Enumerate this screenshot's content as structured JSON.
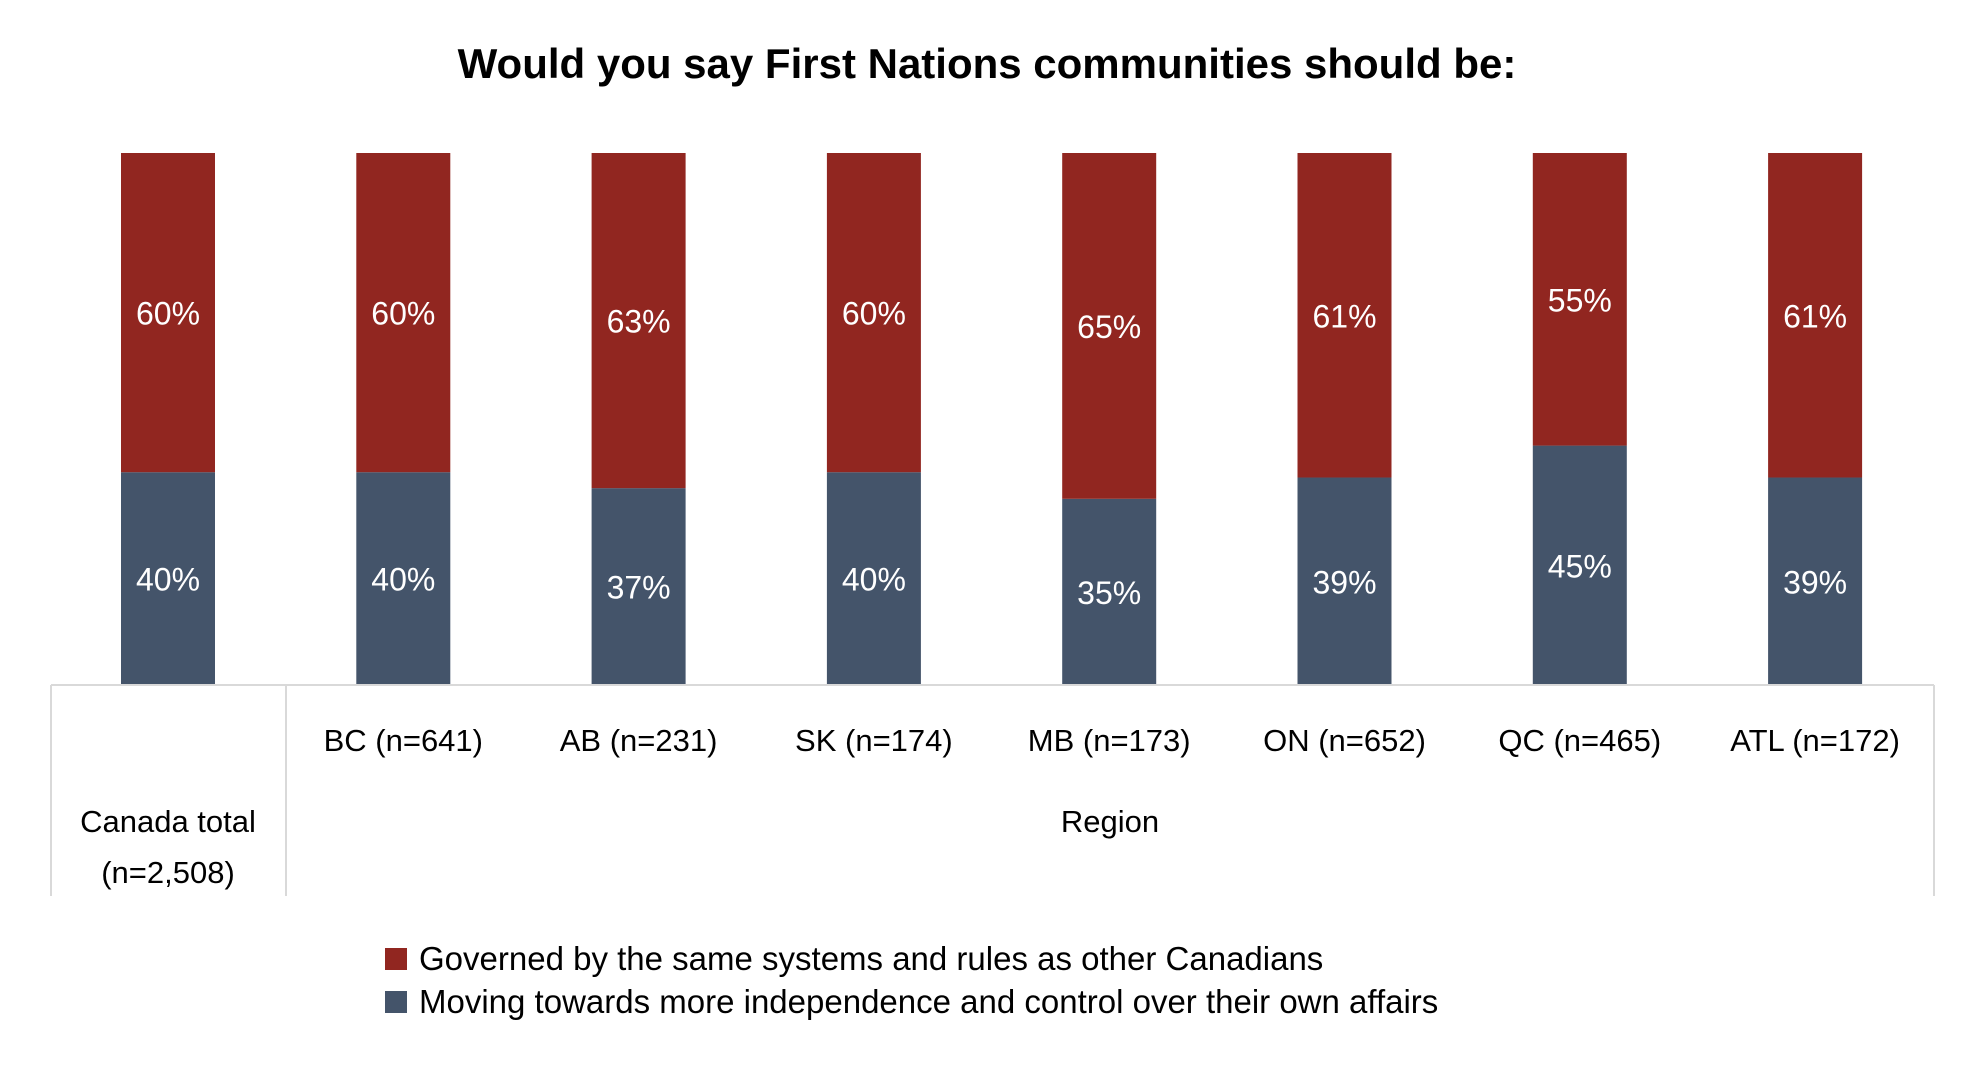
{
  "chart_data": {
    "type": "bar",
    "stacked": true,
    "title": "Would you say First Nations communities should be:",
    "categories": [
      "Canada total (n=2,508)",
      "BC (n=641)",
      "AB (n=231)",
      "SK (n=174)",
      "MB (n=173)",
      "ON (n=652)",
      "QC (n=465)",
      "ATL (n=172)"
    ],
    "category_lines": [
      [
        "Canada total",
        "(n=2,508)"
      ],
      [
        "BC (n=641)"
      ],
      [
        "AB (n=231)"
      ],
      [
        "SK (n=174)"
      ],
      [
        "MB (n=173)"
      ],
      [
        "ON (n=652)"
      ],
      [
        "QC (n=465)"
      ],
      [
        "ATL (n=172)"
      ]
    ],
    "group_label": "Region",
    "series": [
      {
        "name": "Moving towards more independence and control over their own affairs",
        "color": "#44546A",
        "values": [
          40,
          40,
          37,
          40,
          35,
          39,
          45,
          39
        ]
      },
      {
        "name": "Governed by the same systems and rules as other Canadians",
        "color": "#912620",
        "values": [
          60,
          60,
          63,
          60,
          65,
          61,
          55,
          61
        ]
      }
    ],
    "ylim": [
      0,
      100
    ],
    "value_suffix": "%",
    "legend_position": "bottom"
  }
}
